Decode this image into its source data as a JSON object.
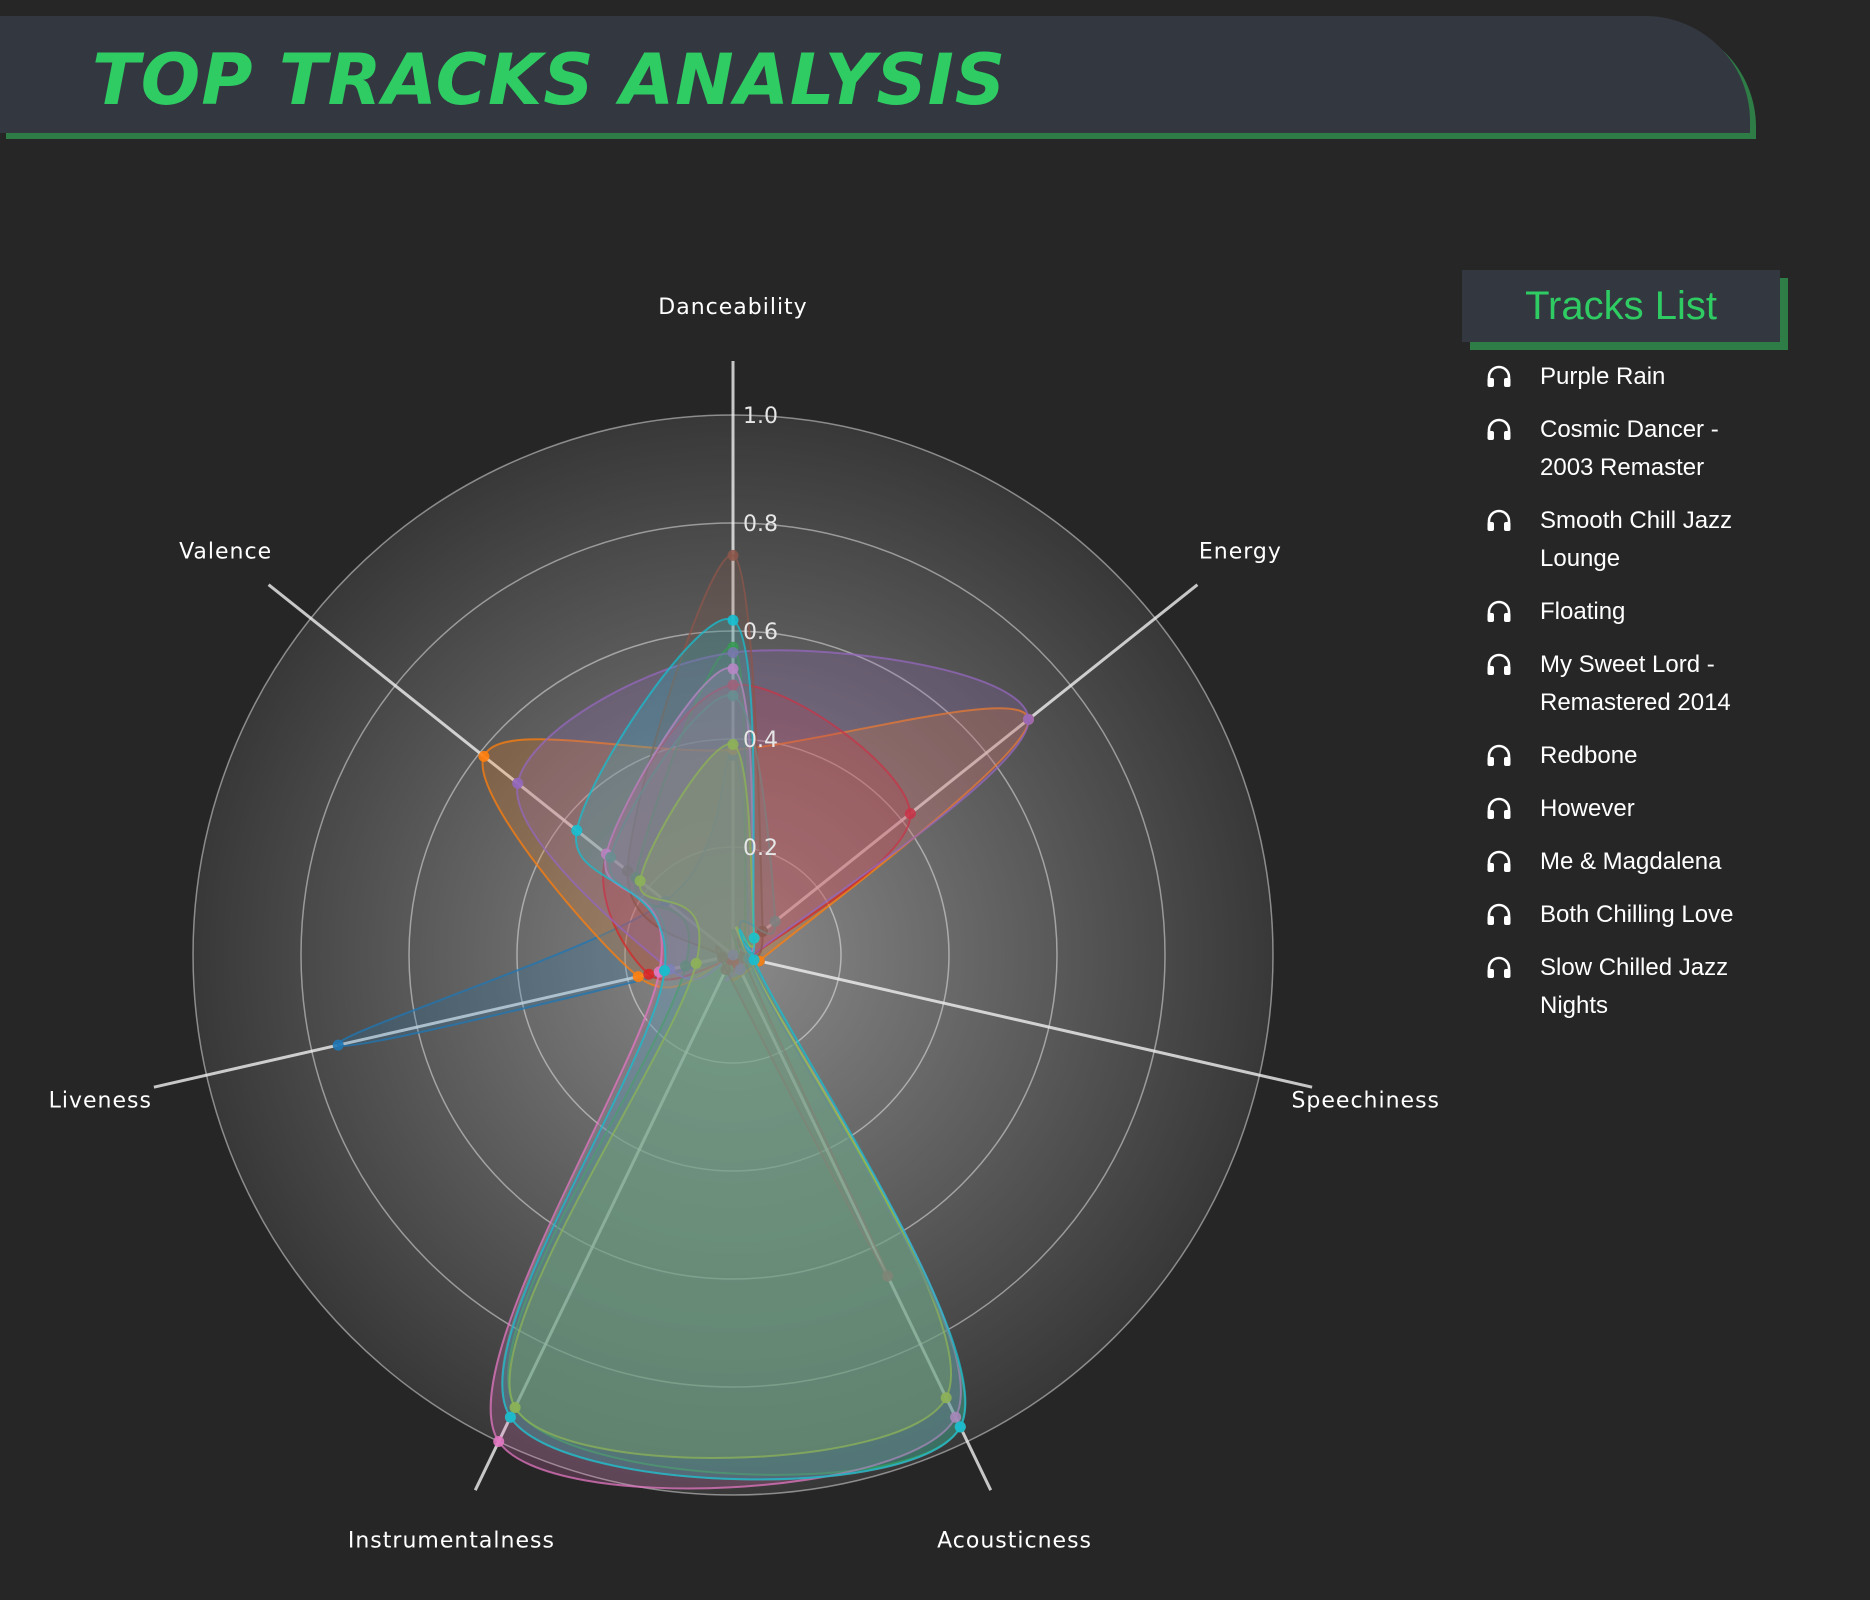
{
  "header": {
    "title": "TOP TRACKS ANALYSIS"
  },
  "tracks_panel": {
    "title": "Tracks List",
    "icon": "headphones-icon",
    "tracks": [
      "Purple Rain",
      "Cosmic Dancer - 2003 Remaster",
      "Smooth Chill Jazz Lounge",
      "Floating",
      "My Sweet Lord - Remastered 2014",
      "Redbone",
      "However",
      "Me & Magdalena",
      "Both Chilling Love",
      "Slow Chilled Jazz Nights"
    ]
  },
  "chart_data": {
    "type": "radar",
    "axes": [
      "Danceability",
      "Energy",
      "Speechiness",
      "Acousticness",
      "Instrumentalness",
      "Liveness",
      "Valence"
    ],
    "radial_range": [
      0,
      1.0
    ],
    "radial_ticks": [
      "0.2",
      "0.4",
      "0.6",
      "0.8",
      "1.0"
    ],
    "grid": true,
    "series": [
      {
        "values": [
          0.37,
          0.04,
          0.05,
          0.03,
          0.01,
          0.75,
          0.16
        ],
        "color": "#1f77b4"
      },
      {
        "values": [
          0.38,
          0.7,
          0.05,
          0.02,
          0.0,
          0.18,
          0.59
        ],
        "color": "#ff7f0e"
      },
      {
        "values": [
          0.57,
          0.03,
          0.03,
          0.97,
          0.93,
          0.09,
          0.23
        ],
        "color": "#2ca02c"
      },
      {
        "values": [
          0.5,
          0.42,
          0.03,
          0.02,
          0.01,
          0.16,
          0.3
        ],
        "color": "#d62728"
      },
      {
        "values": [
          0.56,
          0.7,
          0.03,
          0.03,
          0.0,
          0.12,
          0.51
        ],
        "color": "#9467bd"
      },
      {
        "values": [
          0.74,
          0.07,
          0.02,
          0.66,
          0.03,
          0.02,
          0.25
        ],
        "color": "#8c564b"
      },
      {
        "values": [
          0.53,
          0.05,
          0.03,
          0.95,
          1.0,
          0.14,
          0.3
        ],
        "color": "#e377c2"
      },
      {
        "values": [
          0.39,
          0.05,
          0.03,
          0.91,
          0.93,
          0.07,
          0.22
        ],
        "color": "#bcbd22"
      },
      {
        "values": [
          0.48,
          0.1,
          0.03,
          0.97,
          0.95,
          0.13,
          0.29
        ],
        "color": "#7f7f7f"
      },
      {
        "values": [
          0.62,
          0.05,
          0.04,
          0.97,
          0.95,
          0.13,
          0.37
        ],
        "color": "#17becf"
      }
    ]
  }
}
